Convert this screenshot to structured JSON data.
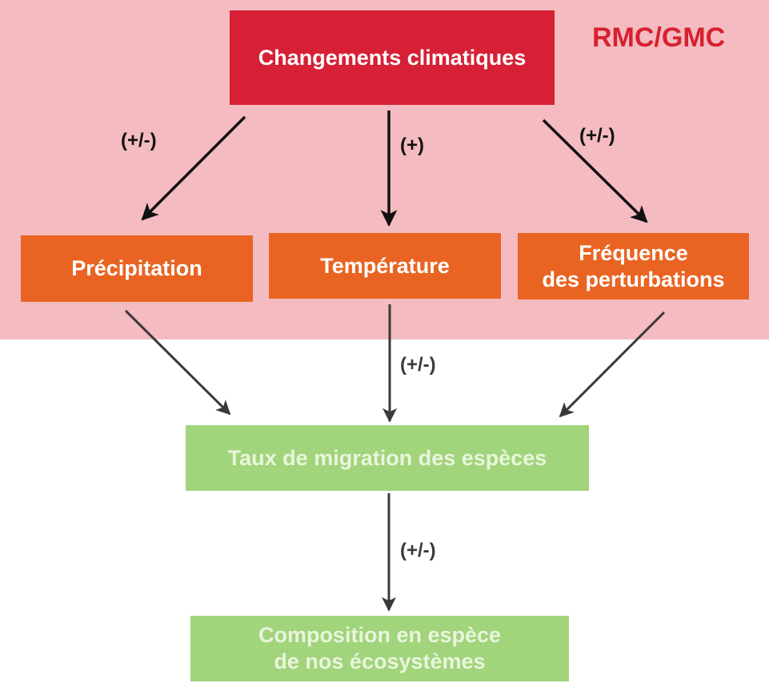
{
  "region": {
    "label": "RMC/GMC",
    "color": "#f4bbc0",
    "label_color": "#d72030"
  },
  "nodes": {
    "top": {
      "label": "Changements climatiques",
      "color": "#d72035"
    },
    "precipitation": {
      "label": "Précipitation",
      "color": "#e96422"
    },
    "temperature": {
      "label": "Température",
      "color": "#e96422"
    },
    "frequency": {
      "line1": "Fréquence",
      "line2": "des perturbations",
      "color": "#e96422"
    },
    "migration": {
      "label": "Taux de migration des espèces",
      "color": "#a1d47b",
      "text_color": "#e9f5dc"
    },
    "composition": {
      "line1": "Composition en espèce",
      "line2": "de nos écosystèmes",
      "color": "#a1d47b",
      "text_color": "#e9f5dc"
    }
  },
  "edge_labels": {
    "top_to_precipitation": "(+/-)",
    "top_to_temperature": "(+)",
    "top_to_frequency": "(+/-)",
    "temperature_to_migration": "(+/-)",
    "migration_to_composition": "(+/-)"
  }
}
